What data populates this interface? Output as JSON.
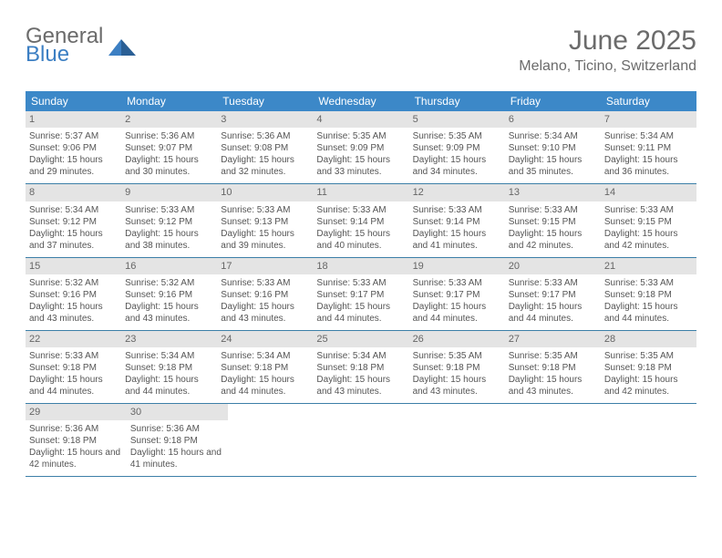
{
  "brand": {
    "line1": "General",
    "line2": "Blue"
  },
  "title": "June 2025",
  "location": "Melano, Ticino, Switzerland",
  "colors": {
    "header_bg": "#3c88c8",
    "header_text": "#ffffff",
    "daynum_bg": "#e4e4e4",
    "row_border": "#3c7fa8",
    "body_text": "#555555",
    "title_text": "#6b6b6b",
    "brand_blue": "#3c7fc3"
  },
  "fonts": {
    "title_size": 30,
    "location_size": 16,
    "weekday_size": 12,
    "body_size": 10
  },
  "weekdays": [
    "Sunday",
    "Monday",
    "Tuesday",
    "Wednesday",
    "Thursday",
    "Friday",
    "Saturday"
  ],
  "days": [
    {
      "n": "1",
      "sunrise": "5:37 AM",
      "sunset": "9:06 PM",
      "daylight": "15 hours and 29 minutes."
    },
    {
      "n": "2",
      "sunrise": "5:36 AM",
      "sunset": "9:07 PM",
      "daylight": "15 hours and 30 minutes."
    },
    {
      "n": "3",
      "sunrise": "5:36 AM",
      "sunset": "9:08 PM",
      "daylight": "15 hours and 32 minutes."
    },
    {
      "n": "4",
      "sunrise": "5:35 AM",
      "sunset": "9:09 PM",
      "daylight": "15 hours and 33 minutes."
    },
    {
      "n": "5",
      "sunrise": "5:35 AM",
      "sunset": "9:09 PM",
      "daylight": "15 hours and 34 minutes."
    },
    {
      "n": "6",
      "sunrise": "5:34 AM",
      "sunset": "9:10 PM",
      "daylight": "15 hours and 35 minutes."
    },
    {
      "n": "7",
      "sunrise": "5:34 AM",
      "sunset": "9:11 PM",
      "daylight": "15 hours and 36 minutes."
    },
    {
      "n": "8",
      "sunrise": "5:34 AM",
      "sunset": "9:12 PM",
      "daylight": "15 hours and 37 minutes."
    },
    {
      "n": "9",
      "sunrise": "5:33 AM",
      "sunset": "9:12 PM",
      "daylight": "15 hours and 38 minutes."
    },
    {
      "n": "10",
      "sunrise": "5:33 AM",
      "sunset": "9:13 PM",
      "daylight": "15 hours and 39 minutes."
    },
    {
      "n": "11",
      "sunrise": "5:33 AM",
      "sunset": "9:14 PM",
      "daylight": "15 hours and 40 minutes."
    },
    {
      "n": "12",
      "sunrise": "5:33 AM",
      "sunset": "9:14 PM",
      "daylight": "15 hours and 41 minutes."
    },
    {
      "n": "13",
      "sunrise": "5:33 AM",
      "sunset": "9:15 PM",
      "daylight": "15 hours and 42 minutes."
    },
    {
      "n": "14",
      "sunrise": "5:33 AM",
      "sunset": "9:15 PM",
      "daylight": "15 hours and 42 minutes."
    },
    {
      "n": "15",
      "sunrise": "5:32 AM",
      "sunset": "9:16 PM",
      "daylight": "15 hours and 43 minutes."
    },
    {
      "n": "16",
      "sunrise": "5:32 AM",
      "sunset": "9:16 PM",
      "daylight": "15 hours and 43 minutes."
    },
    {
      "n": "17",
      "sunrise": "5:33 AM",
      "sunset": "9:16 PM",
      "daylight": "15 hours and 43 minutes."
    },
    {
      "n": "18",
      "sunrise": "5:33 AM",
      "sunset": "9:17 PM",
      "daylight": "15 hours and 44 minutes."
    },
    {
      "n": "19",
      "sunrise": "5:33 AM",
      "sunset": "9:17 PM",
      "daylight": "15 hours and 44 minutes."
    },
    {
      "n": "20",
      "sunrise": "5:33 AM",
      "sunset": "9:17 PM",
      "daylight": "15 hours and 44 minutes."
    },
    {
      "n": "21",
      "sunrise": "5:33 AM",
      "sunset": "9:18 PM",
      "daylight": "15 hours and 44 minutes."
    },
    {
      "n": "22",
      "sunrise": "5:33 AM",
      "sunset": "9:18 PM",
      "daylight": "15 hours and 44 minutes."
    },
    {
      "n": "23",
      "sunrise": "5:34 AM",
      "sunset": "9:18 PM",
      "daylight": "15 hours and 44 minutes."
    },
    {
      "n": "24",
      "sunrise": "5:34 AM",
      "sunset": "9:18 PM",
      "daylight": "15 hours and 44 minutes."
    },
    {
      "n": "25",
      "sunrise": "5:34 AM",
      "sunset": "9:18 PM",
      "daylight": "15 hours and 43 minutes."
    },
    {
      "n": "26",
      "sunrise": "5:35 AM",
      "sunset": "9:18 PM",
      "daylight": "15 hours and 43 minutes."
    },
    {
      "n": "27",
      "sunrise": "5:35 AM",
      "sunset": "9:18 PM",
      "daylight": "15 hours and 43 minutes."
    },
    {
      "n": "28",
      "sunrise": "5:35 AM",
      "sunset": "9:18 PM",
      "daylight": "15 hours and 42 minutes."
    },
    {
      "n": "29",
      "sunrise": "5:36 AM",
      "sunset": "9:18 PM",
      "daylight": "15 hours and 42 minutes."
    },
    {
      "n": "30",
      "sunrise": "5:36 AM",
      "sunset": "9:18 PM",
      "daylight": "15 hours and 41 minutes."
    }
  ],
  "labels": {
    "sunrise": "Sunrise:",
    "sunset": "Sunset:",
    "daylight": "Daylight:"
  },
  "layout": {
    "cols": 7,
    "rows": 5,
    "start_offset": 0,
    "trailing_blanks": 5
  }
}
